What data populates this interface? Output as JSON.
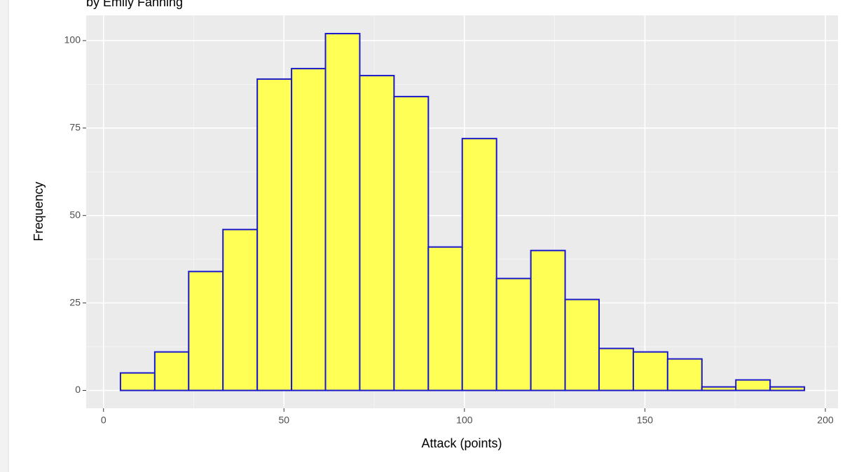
{
  "chart_data": {
    "type": "histogram",
    "subtitle": "by Emily Fanning",
    "x_label": "Attack (points)",
    "y_label": "Frequency",
    "bins": [
      4.7,
      14.2,
      23.6,
      33.1,
      42.6,
      52.1,
      61.5,
      71.0,
      80.5,
      90.0,
      99.4,
      108.9,
      118.4,
      127.9,
      137.3,
      146.8,
      156.3,
      165.8,
      175.2,
      184.7,
      194.2
    ],
    "values": [
      5,
      11,
      34,
      46,
      89,
      92,
      102,
      90,
      84,
      41,
      72,
      32,
      40,
      26,
      12,
      11,
      9,
      1,
      3,
      1
    ],
    "color": "#ffff55",
    "edge_color": "#1a1acc",
    "xlim": [
      -4.8,
      203.5
    ],
    "ylim": [
      -5.1,
      107.2
    ],
    "xticks": [
      0,
      50,
      100,
      150,
      200
    ],
    "yticks": [
      0,
      25,
      50,
      75,
      100
    ],
    "x_minor_breaks": [
      25,
      75,
      125,
      175
    ],
    "y_minor_breaks": [
      12.5,
      37.5,
      62.5,
      87.5
    ],
    "grid": true
  }
}
